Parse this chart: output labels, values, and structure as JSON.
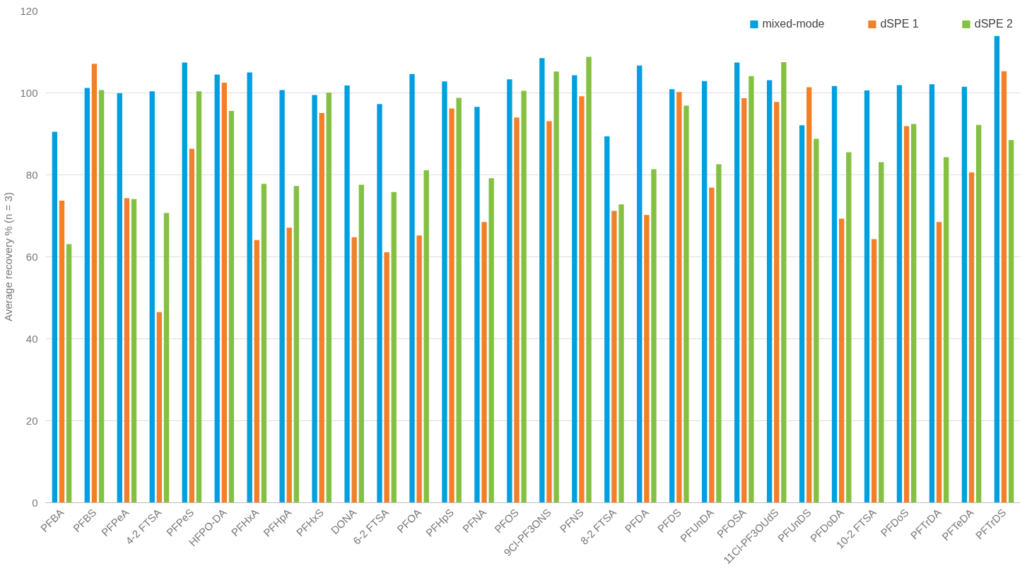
{
  "chart_data": {
    "type": "bar",
    "ylabel": "Average recovery % (n = 3)",
    "categories": [
      "PFBA",
      "PFBS",
      "PFPeA",
      "4-2 FTSA",
      "PFPeS",
      "HFPO-DA",
      "PFHxA",
      "PFHpA",
      "PFHxS",
      "DONA",
      "6-2 FTSA",
      "PFOA",
      "PFHpS",
      "PFNA",
      "PFOS",
      "9Cl-PF3ONS",
      "PFNS",
      "8-2 FTSA",
      "PFDA",
      "PFDS",
      "PFUnDA",
      "PFOSA",
      "11Cl-PF3OUdS",
      "PFUnDS",
      "PFDoDA",
      "10-2 FTSA",
      "PFDoS",
      "PFTrDA",
      "PFTeDA",
      "PFTrDS"
    ],
    "series": [
      {
        "name": "mixed-mode",
        "color": "#00a0e0",
        "values": [
          90.5,
          101.2,
          99.9,
          100.4,
          107.4,
          104.5,
          105.0,
          100.7,
          99.5,
          101.8,
          97.3,
          104.6,
          102.8,
          96.6,
          103.3,
          108.5,
          104.3,
          89.4,
          106.7,
          100.9,
          102.9,
          107.4,
          103.1,
          92.1,
          101.7,
          100.6,
          101.9,
          102.1,
          101.5,
          113.9
        ]
      },
      {
        "name": "dSPE 1",
        "color": "#f28028",
        "values": [
          73.7,
          107.1,
          74.3,
          46.5,
          86.4,
          102.5,
          64.1,
          67.1,
          95.1,
          64.8,
          61.1,
          65.2,
          96.2,
          68.5,
          94.0,
          93.1,
          99.2,
          71.2,
          70.2,
          100.2,
          76.9,
          98.7,
          97.8,
          101.4,
          69.3,
          64.3,
          91.9,
          68.5,
          80.6,
          105.3
        ]
      },
      {
        "name": "dSPE 2",
        "color": "#84c041",
        "values": [
          63.1,
          100.7,
          74.1,
          70.7,
          100.4,
          95.6,
          77.8,
          77.3,
          100.1,
          77.6,
          75.8,
          81.1,
          98.8,
          79.2,
          100.5,
          105.2,
          108.8,
          72.8,
          81.4,
          96.9,
          82.6,
          104.1,
          107.5,
          88.8,
          85.5,
          83.1,
          92.4,
          84.3,
          92.2,
          88.5
        ]
      }
    ],
    "ylim": [
      0,
      120
    ],
    "yticks": [
      0,
      20,
      40,
      60,
      80,
      100,
      120
    ],
    "grid": "y",
    "legend": "top right"
  }
}
